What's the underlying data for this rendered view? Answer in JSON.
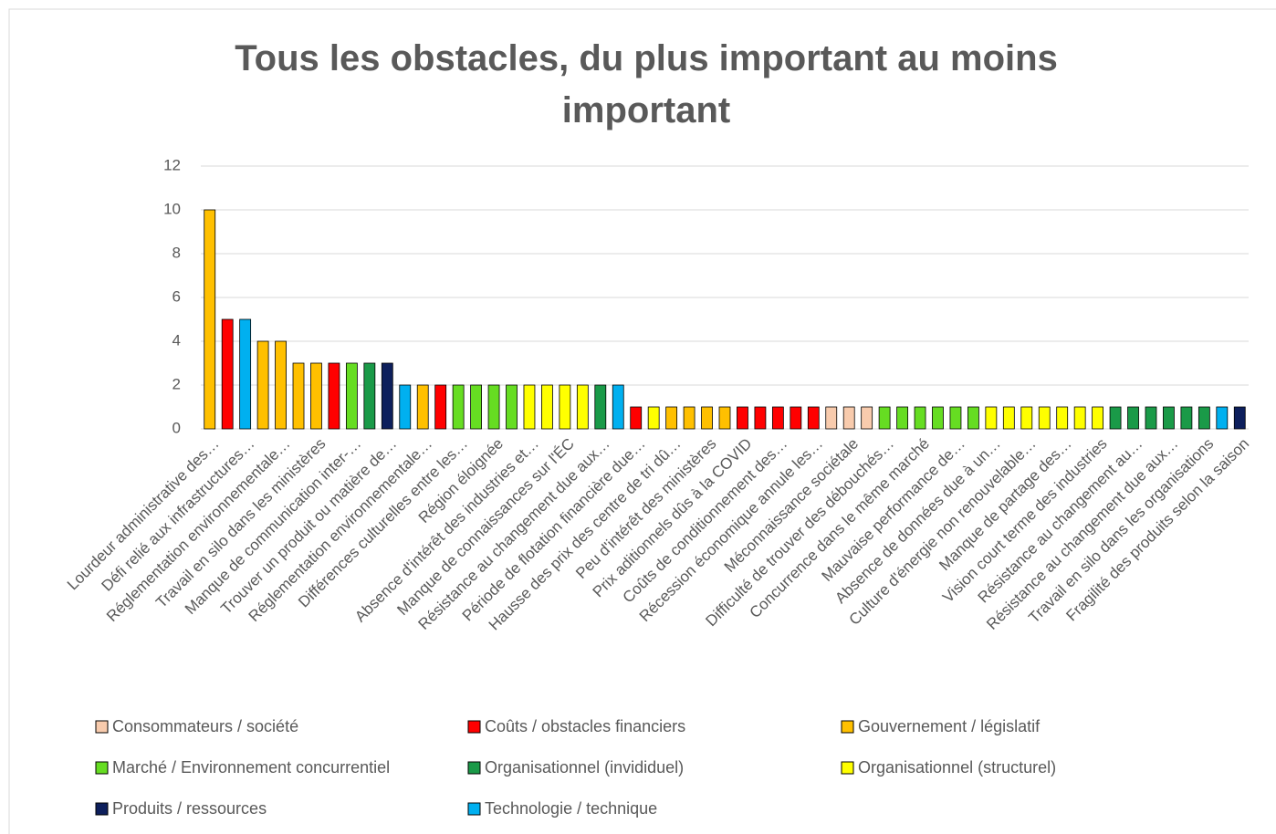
{
  "chart_data": {
    "type": "bar",
    "title": "Tous les obstacles, du plus important au moins important",
    "categories": [
      "Lourdeur administrative des…",
      null,
      "Défi relié aux infrastructures…",
      null,
      "Réglementation environnementale…",
      null,
      "Travail en silo dans les ministères",
      null,
      "Manque de communication inter-…",
      null,
      "Trouver un produit ou matière de…",
      null,
      "Réglementation environnementale…",
      null,
      "Différences culturelles entre les…",
      null,
      "Région éloignée",
      null,
      "Absence d'intérêt des industries et…",
      null,
      "Manque de connaissances sur l'ÉC",
      null,
      "Résistance au changement due aux…",
      null,
      "Période de flotation financière due…",
      null,
      "Hausse des prix des centre de tri dû…",
      null,
      "Peu d'intérêt des ministères",
      null,
      "Prix aditionnels dûs à la COVID",
      null,
      "Coûts de conditionnement des…",
      null,
      "Récession économique annule les…",
      null,
      "Méconnaissance sociétale",
      null,
      "Difficulté de trouver des débouchés…",
      null,
      "Concurrence dans le même marché",
      null,
      "Mauvaise performance de…",
      null,
      "Absence de données due à un…",
      null,
      "Culture d'énergie non renouvelable…",
      null,
      "Manque de partage des…",
      null,
      "Vision court terme des industries",
      null,
      "Résistance au changement au…",
      null,
      "Résistance au changement due aux…",
      null,
      "Travail en silo dans les organisations",
      null,
      "Fragilité des produits selon la saison"
    ],
    "values": [
      10,
      5,
      5,
      4,
      4,
      3,
      3,
      3,
      3,
      3,
      3,
      2,
      2,
      2,
      2,
      2,
      2,
      2,
      2,
      2,
      2,
      2,
      2,
      2,
      1,
      1,
      1,
      1,
      1,
      1,
      1,
      1,
      1,
      1,
      1,
      1,
      1,
      1,
      1,
      1,
      1,
      1,
      1,
      1,
      1,
      1,
      1,
      1,
      1,
      1,
      1,
      1,
      1,
      1,
      1,
      1,
      1,
      1,
      1
    ],
    "colors": [
      "#ffc000",
      "#ff0000",
      "#00b0f0",
      "#ffc000",
      "#ffc000",
      "#ffc000",
      "#ffc000",
      "#ff0000",
      "#66dd22",
      "#1a9a48",
      "#0d1f5c",
      "#00b0f0",
      "#ffc000",
      "#ff0000",
      "#66dd22",
      "#66dd22",
      "#66dd22",
      "#66dd22",
      "#ffff00",
      "#ffff00",
      "#ffff00",
      "#ffff00",
      "#1a9a48",
      "#00b0f0",
      "#ff0000",
      "#ffff00",
      "#ffc000",
      "#ffc000",
      "#ffc000",
      "#ffc000",
      "#ff0000",
      "#ff0000",
      "#ff0000",
      "#ff0000",
      "#ff0000",
      "#f8cbad",
      "#f8cbad",
      "#f8cbad",
      "#66dd22",
      "#66dd22",
      "#66dd22",
      "#66dd22",
      "#66dd22",
      "#66dd22",
      "#ffff00",
      "#ffff00",
      "#ffff00",
      "#ffff00",
      "#ffff00",
      "#ffff00",
      "#ffff00",
      "#1a9a48",
      "#1a9a48",
      "#1a9a48",
      "#1a9a48",
      "#1a9a48",
      "#1a9a48",
      "#00b0f0",
      "#0d1f5c"
    ],
    "legend": [
      {
        "name": "Consommateurs / société",
        "color": "#f8cbad"
      },
      {
        "name": "Coûts / obstacles financiers",
        "color": "#ff0000"
      },
      {
        "name": "Gouvernement / législatif",
        "color": "#ffc000"
      },
      {
        "name": "Marché / Environnement concurrentiel",
        "color": "#66dd22"
      },
      {
        "name": "Organisationnel (invididuel)",
        "color": "#1a9a48"
      },
      {
        "name": "Organisationnel (structurel)",
        "color": "#ffff00"
      },
      {
        "name": "Produits / ressources",
        "color": "#0d1f5c"
      },
      {
        "name": "Technologie / technique",
        "color": "#00b0f0"
      }
    ],
    "ylim": [
      0,
      12
    ],
    "yticks": [
      0,
      2,
      4,
      6,
      8,
      10,
      12
    ],
    "grid": true
  }
}
